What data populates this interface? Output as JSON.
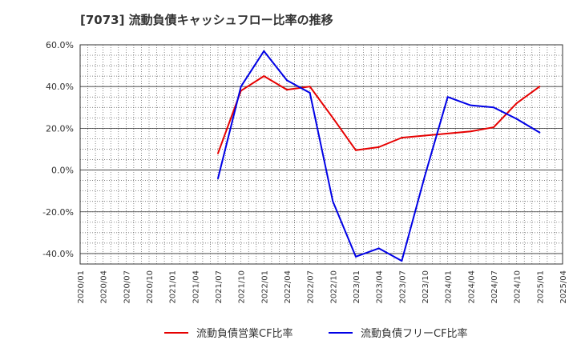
{
  "chart_data": {
    "type": "line",
    "title": "[7073]  流動負債キャッシュフロー比率の推移",
    "xlabel": "",
    "ylabel": "",
    "ylim": [
      -45,
      60
    ],
    "yticks": [
      60,
      40,
      20,
      0,
      -20,
      -40
    ],
    "ytick_labels": [
      "60.0%",
      "40.0%",
      "20.0%",
      "0.0%",
      "-20.0%",
      "-40.0%"
    ],
    "xtick_labels": [
      "2020/01",
      "2020/04",
      "2020/07",
      "2020/10",
      "2021/01",
      "2021/04",
      "2021/07",
      "2021/10",
      "2022/01",
      "2022/04",
      "2022/07",
      "2022/10",
      "2023/01",
      "2023/04",
      "2023/07",
      "2023/10",
      "2024/01",
      "2024/04",
      "2024/07",
      "2024/10",
      "2025/01",
      "2025/04"
    ],
    "grid": true,
    "legend_position": "bottom-center",
    "series": [
      {
        "name": "流動負債営業CF比率",
        "color": "#e60000",
        "points": [
          {
            "x": "2021/07",
            "y": 8
          },
          {
            "x": "2021/10",
            "y": 38
          },
          {
            "x": "2022/01",
            "y": 45
          },
          {
            "x": "2022/04",
            "y": 38.5
          },
          {
            "x": "2022/07",
            "y": 40
          },
          {
            "x": "2022/10",
            "y": 25
          },
          {
            "x": "2023/01",
            "y": 9.5
          },
          {
            "x": "2023/04",
            "y": 11
          },
          {
            "x": "2023/07",
            "y": 15.5
          },
          {
            "x": "2023/10",
            "y": 16.5
          },
          {
            "x": "2024/01",
            "y": 17.5
          },
          {
            "x": "2024/04",
            "y": 18.5
          },
          {
            "x": "2024/07",
            "y": 20.5
          },
          {
            "x": "2024/10",
            "y": 32
          },
          {
            "x": "2025/01",
            "y": 40
          }
        ]
      },
      {
        "name": "流動負債フリーCF比率",
        "color": "#0000e6",
        "points": [
          {
            "x": "2021/07",
            "y": -4
          },
          {
            "x": "2021/10",
            "y": 40
          },
          {
            "x": "2022/01",
            "y": 57
          },
          {
            "x": "2022/04",
            "y": 43
          },
          {
            "x": "2022/07",
            "y": 37
          },
          {
            "x": "2022/10",
            "y": -15
          },
          {
            "x": "2023/01",
            "y": -41.5
          },
          {
            "x": "2023/04",
            "y": -37.5
          },
          {
            "x": "2023/07",
            "y": -43.5
          },
          {
            "x": "2023/10",
            "y": -3
          },
          {
            "x": "2024/01",
            "y": 35
          },
          {
            "x": "2024/04",
            "y": 31
          },
          {
            "x": "2024/07",
            "y": 30
          },
          {
            "x": "2024/10",
            "y": 24.5
          },
          {
            "x": "2025/01",
            "y": 18
          }
        ]
      }
    ]
  }
}
